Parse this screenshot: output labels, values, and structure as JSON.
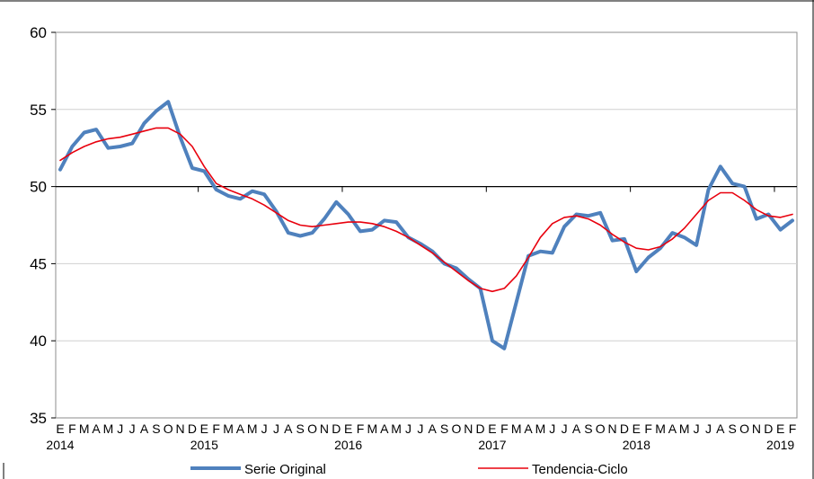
{
  "chart_data": {
    "type": "line",
    "title": "",
    "xlabel": "",
    "ylabel": "",
    "ylim": [
      35,
      60
    ],
    "yticks": [
      35,
      40,
      45,
      50,
      55,
      60
    ],
    "grid": true,
    "legend_position": "bottom",
    "month_letters": [
      "E",
      "F",
      "M",
      "A",
      "M",
      "J",
      "J",
      "A",
      "S",
      "O",
      "N",
      "D",
      "E",
      "F",
      "M",
      "A",
      "M",
      "J",
      "J",
      "A",
      "S",
      "O",
      "N",
      "D",
      "E",
      "F",
      "M",
      "A",
      "M",
      "J",
      "J",
      "A",
      "S",
      "O",
      "N",
      "D",
      "E",
      "F",
      "M",
      "A",
      "M",
      "J",
      "J",
      "A",
      "S",
      "O",
      "N",
      "D",
      "E",
      "F",
      "M",
      "A",
      "M",
      "J",
      "J",
      "A",
      "S",
      "O",
      "N",
      "D",
      "E",
      "F"
    ],
    "years": [
      {
        "label": "2014",
        "month_index": 0
      },
      {
        "label": "2015",
        "month_index": 12
      },
      {
        "label": "2016",
        "month_index": 24
      },
      {
        "label": "2017",
        "month_index": 36
      },
      {
        "label": "2018",
        "month_index": 48
      },
      {
        "label": "2019",
        "month_index": 60
      }
    ],
    "series": [
      {
        "name": "Serie Original",
        "color": "#4f81bd",
        "values": [
          51.1,
          52.6,
          53.5,
          53.7,
          52.5,
          52.6,
          52.8,
          54.1,
          54.9,
          55.5,
          53.2,
          51.2,
          51.0,
          49.8,
          49.4,
          49.2,
          49.7,
          49.5,
          48.4,
          47.0,
          46.8,
          47.0,
          47.9,
          49.0,
          48.2,
          47.1,
          47.2,
          47.8,
          47.7,
          46.7,
          46.3,
          45.8,
          45.0,
          44.7,
          44.0,
          43.4,
          40.0,
          39.5,
          42.5,
          45.5,
          45.8,
          45.7,
          47.4,
          48.2,
          48.1,
          48.3,
          46.5,
          46.6,
          44.5,
          45.4,
          46.0,
          47.0,
          46.7,
          46.2,
          49.8,
          51.3,
          50.2,
          50.0,
          47.9,
          48.2,
          47.2,
          47.8
        ]
      },
      {
        "name": "Tendencia-Ciclo",
        "color": "#e8000d",
        "values": [
          51.7,
          52.2,
          52.6,
          52.9,
          53.1,
          53.2,
          53.4,
          53.6,
          53.8,
          53.8,
          53.4,
          52.6,
          51.3,
          50.2,
          49.8,
          49.5,
          49.2,
          48.8,
          48.3,
          47.8,
          47.5,
          47.4,
          47.5,
          47.6,
          47.7,
          47.7,
          47.6,
          47.4,
          47.1,
          46.7,
          46.2,
          45.7,
          45.1,
          44.5,
          43.9,
          43.4,
          43.2,
          43.4,
          44.2,
          45.4,
          46.7,
          47.6,
          48.0,
          48.1,
          47.9,
          47.5,
          46.9,
          46.4,
          46.0,
          45.9,
          46.1,
          46.6,
          47.3,
          48.2,
          49.1,
          49.6,
          49.6,
          49.1,
          48.5,
          48.1,
          48.0,
          48.2
        ]
      }
    ]
  }
}
